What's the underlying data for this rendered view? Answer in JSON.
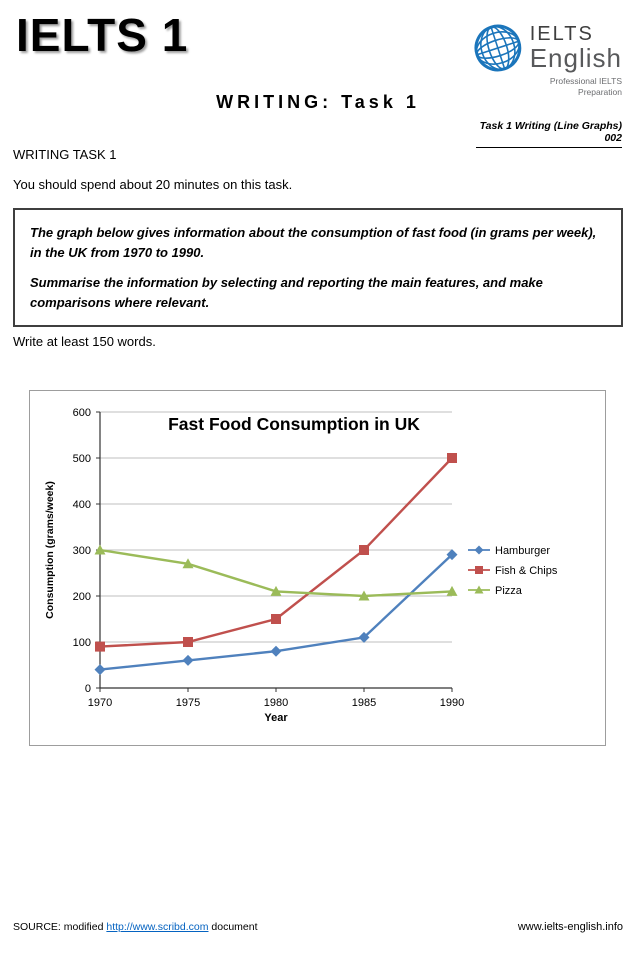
{
  "header": {
    "title": "IELTS 1",
    "subtitle": "WRITING: Task 1",
    "doc_ref": "Task 1 Writing (Line Graphs)  002",
    "logo": {
      "line1": "IELTS",
      "line2": "English",
      "line3": "Professional IELTS",
      "line4": "Preparation"
    }
  },
  "task": {
    "heading": "WRITING TASK 1",
    "instruction": "You should spend about 20 minutes on this task.",
    "prompt_1": "The graph below gives information about the consumption of fast food (in grams per week), in the UK from 1970 to 1990.",
    "prompt_2": "Summarise the information by selecting and reporting the main features, and make comparisons where relevant.",
    "word_count": "Write at least 150 words."
  },
  "chart_data": {
    "type": "line",
    "title": "Fast Food Consumption in UK",
    "xlabel": "Year",
    "ylabel": "Consumption  (grams/week)",
    "x": [
      1970,
      1975,
      1980,
      1985,
      1990
    ],
    "ylim": [
      0,
      600
    ],
    "ytick_step": 100,
    "grid": true,
    "legend_position": "right",
    "series": [
      {
        "name": "Hamburger",
        "color": "#4F81BD",
        "marker": "diamond",
        "values": [
          40,
          60,
          80,
          110,
          290
        ]
      },
      {
        "name": "Fish & Chips",
        "color": "#C0504D",
        "marker": "square",
        "values": [
          90,
          100,
          150,
          300,
          500
        ]
      },
      {
        "name": "Pizza",
        "color": "#9BBB59",
        "marker": "triangle",
        "values": [
          300,
          270,
          210,
          200,
          210
        ]
      }
    ]
  },
  "footer": {
    "source_prefix": "SOURCE: modified ",
    "source_link": "http://www.scribd.com",
    "source_suffix": " document",
    "website": "www.ielts-english.info"
  }
}
